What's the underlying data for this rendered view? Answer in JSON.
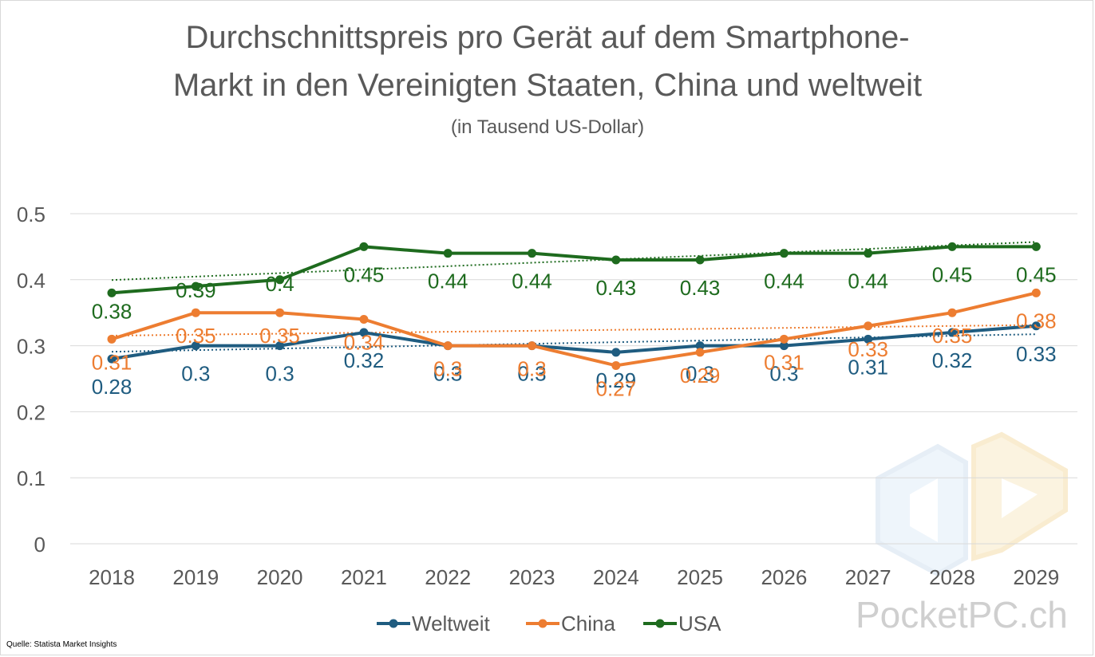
{
  "chart_data": {
    "type": "line",
    "title_line1": "Durchschnittspreis pro Gerät auf dem Smartphone-",
    "title_line2": "Markt in den Vereinigten Staaten, China und weltweit",
    "subtitle": "(in Tausend US-Dollar)",
    "categories": [
      "2018",
      "2019",
      "2020",
      "2021",
      "2022",
      "2023",
      "2024",
      "2025",
      "2026",
      "2027",
      "2028",
      "2029"
    ],
    "series": [
      {
        "name": "Weltweit",
        "color": "#1f5c80",
        "values": [
          0.28,
          0.3,
          0.3,
          0.32,
          0.3,
          0.3,
          0.29,
          0.3,
          0.3,
          0.31,
          0.32,
          0.33
        ],
        "labels": [
          "0.28",
          "0.3",
          "0.3",
          "0.32",
          "0.3",
          "0.3",
          "0.29",
          "0.3",
          "0.3",
          "0.31",
          "0.32",
          "0.33"
        ]
      },
      {
        "name": "China",
        "color": "#ed7d31",
        "values": [
          0.31,
          0.35,
          0.35,
          0.34,
          0.3,
          0.3,
          0.27,
          0.29,
          0.31,
          0.33,
          0.35,
          0.38
        ],
        "labels": [
          "0.31",
          "0.35",
          "0.35",
          "0.34",
          "0.3",
          "0.3",
          "0.27",
          "0.29",
          "0.31",
          "0.33",
          "0.35",
          "0.38"
        ]
      },
      {
        "name": "USA",
        "color": "#1e6b1e",
        "values": [
          0.38,
          0.39,
          0.4,
          0.45,
          0.44,
          0.44,
          0.43,
          0.43,
          0.44,
          0.44,
          0.45,
          0.45
        ],
        "labels": [
          "0.38",
          "0.39",
          "0.4",
          "0.45",
          "0.44",
          "0.44",
          "0.43",
          "0.43",
          "0.44",
          "0.44",
          "0.45",
          "0.45"
        ]
      }
    ],
    "yticks": [
      "0",
      "0.1",
      "0.2",
      "0.3",
      "0.4",
      "0.5"
    ],
    "ylim": [
      0,
      0.5
    ],
    "trendlines": true,
    "legend_position": "bottom",
    "grid": true
  },
  "source": "Quelle: Statista Market Insights",
  "watermark": "PocketPC.ch"
}
